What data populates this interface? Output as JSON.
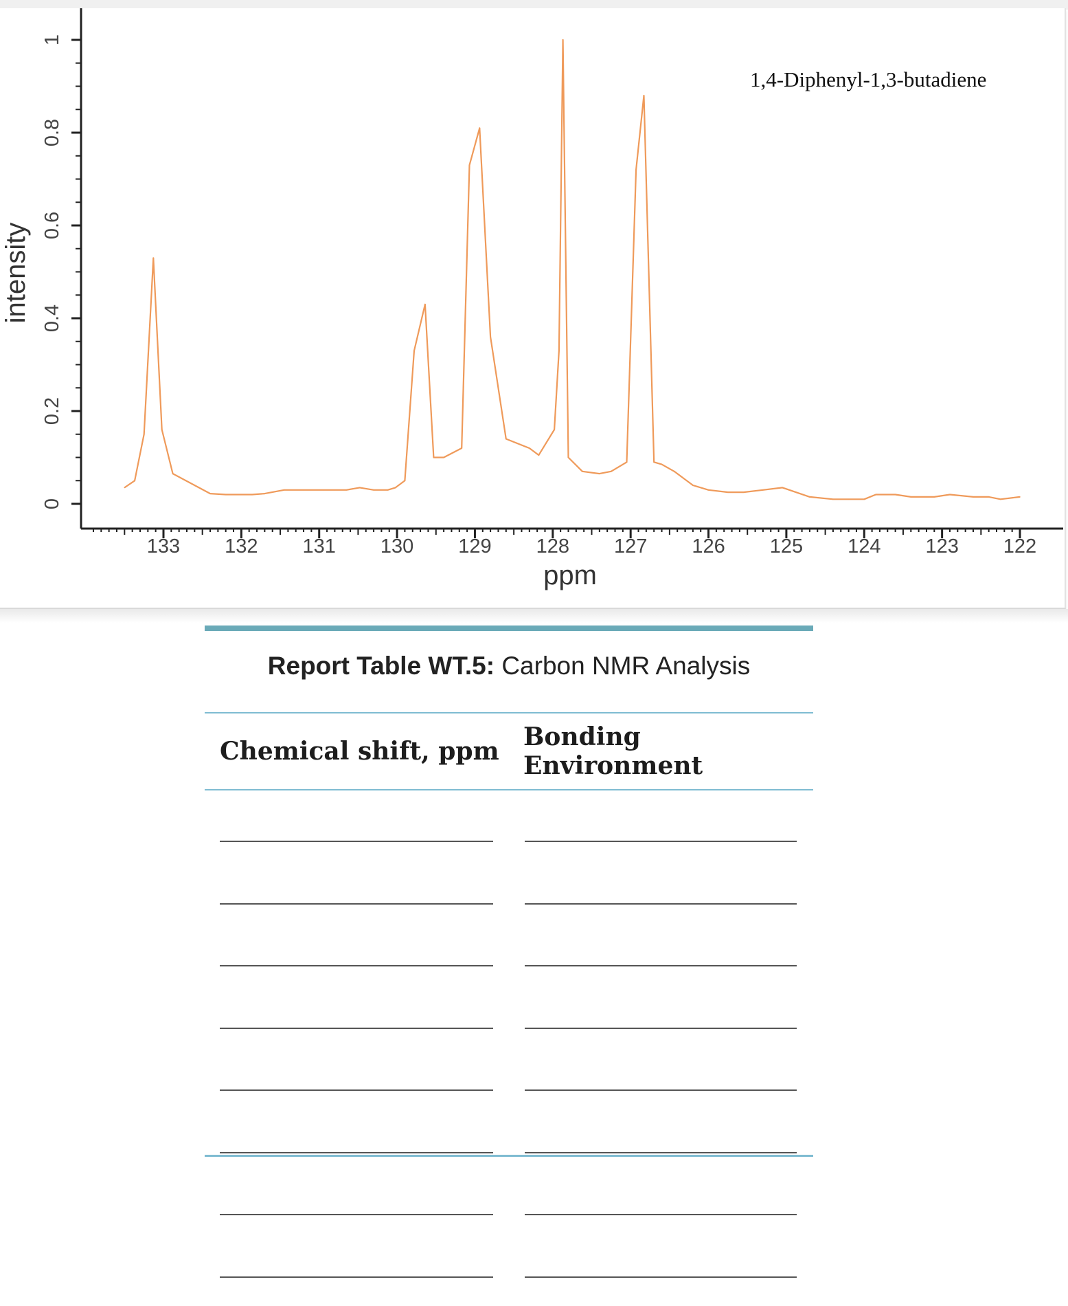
{
  "chart_data": {
    "type": "line",
    "xlabel": "ppm",
    "ylabel": "intensity",
    "xlim": [
      122,
      133.9
    ],
    "ylim": [
      0,
      1
    ],
    "x_reversed": true,
    "x_ticks": [
      133,
      132,
      131,
      130,
      129,
      128,
      127,
      126,
      125,
      124,
      123,
      122
    ],
    "y_ticks": [
      0,
      0.2,
      0.4,
      0.6,
      0.8,
      1
    ],
    "annotation": "1,4-Diphenyl-1,3-butadiene",
    "line_color": "#ef9a5a",
    "series": [
      {
        "x": [
          133.5,
          133.37,
          133.25,
          133.13,
          133.02,
          132.88,
          132.6,
          132.4,
          132.2,
          132.0,
          131.86,
          131.7,
          131.45,
          131.2,
          130.95,
          130.8,
          130.65,
          130.48,
          130.3,
          130.12,
          130.02,
          129.9,
          129.78,
          129.64,
          129.53,
          129.4,
          129.17,
          129.07,
          128.94,
          128.8,
          128.6,
          128.3,
          128.18,
          127.98,
          127.92,
          127.87,
          127.8,
          127.62,
          127.4,
          127.25,
          127.05,
          126.93,
          126.83,
          126.7,
          126.6,
          126.44,
          126.2,
          126.0,
          125.75,
          125.55,
          125.3,
          125.05,
          124.7,
          124.4,
          124.2,
          124.0,
          123.85,
          123.6,
          123.4,
          123.1,
          122.9,
          122.6,
          122.4,
          122.25,
          122.0
        ],
        "y": [
          0.035,
          0.05,
          0.15,
          0.53,
          0.16,
          0.065,
          0.04,
          0.022,
          0.02,
          0.02,
          0.02,
          0.022,
          0.03,
          0.03,
          0.03,
          0.03,
          0.03,
          0.035,
          0.03,
          0.03,
          0.035,
          0.05,
          0.33,
          0.43,
          0.1,
          0.1,
          0.12,
          0.73,
          0.81,
          0.36,
          0.14,
          0.12,
          0.105,
          0.16,
          0.33,
          1.0,
          0.1,
          0.07,
          0.065,
          0.07,
          0.09,
          0.72,
          0.88,
          0.09,
          0.085,
          0.07,
          0.04,
          0.03,
          0.025,
          0.025,
          0.03,
          0.035,
          0.015,
          0.01,
          0.01,
          0.01,
          0.02,
          0.02,
          0.015,
          0.015,
          0.02,
          0.015,
          0.015,
          0.01,
          0.015
        ]
      }
    ]
  },
  "report_table": {
    "title_bold": "Report Table WT.5:",
    "title_rest": " Carbon NMR Analysis",
    "col1_header": "Chemical shift, ppm",
    "col2_header": "Bonding Environment",
    "blank_rows": 8
  }
}
